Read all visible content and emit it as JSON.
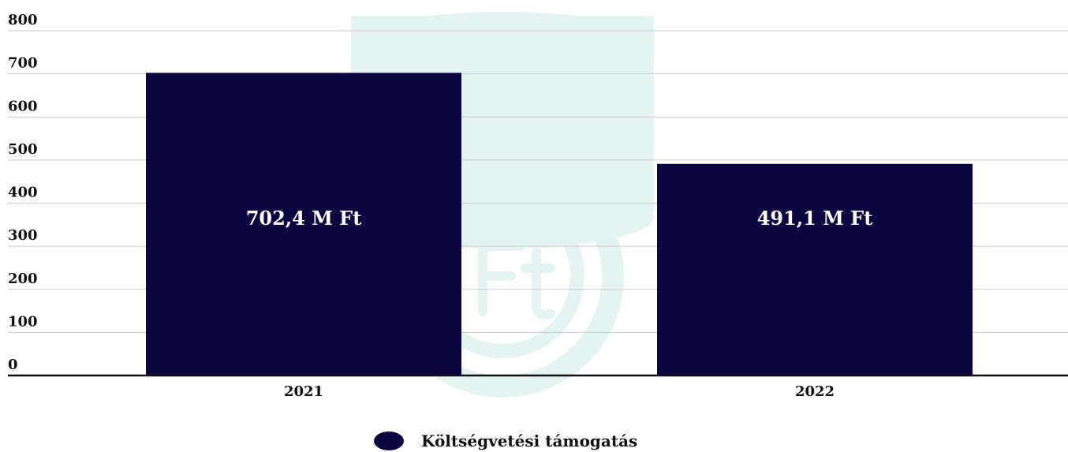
{
  "chart_data": {
    "type": "bar",
    "categories": [
      "2021",
      "2022"
    ],
    "series": [
      {
        "name": "Költségvetési támogatás",
        "values": [
          702.4,
          491.1
        ]
      }
    ],
    "data_labels": [
      "702,4 M Ft",
      "491,1 M Ft"
    ],
    "yticks": [
      "0",
      "100",
      "200",
      "300",
      "400",
      "500",
      "600",
      "700",
      "800"
    ],
    "ylim": [
      0,
      800
    ],
    "grid": true,
    "legend_position": "bottom-center",
    "title": "",
    "xlabel": "",
    "ylabel": ""
  },
  "colors": {
    "bar": "#0d0640",
    "gridline": "#cccccc",
    "axis": "#111111",
    "watermark": "#e3f4f1"
  },
  "watermark_icon": "forint-coins-icon"
}
